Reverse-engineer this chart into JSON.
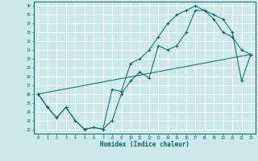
{
  "xlabel": "Humidex (Indice chaleur)",
  "ylabel": "",
  "bg_color": "#cce8e8",
  "grid_color": "#ffffff",
  "line_color": "#006666",
  "xlim": [
    -0.5,
    23.5
  ],
  "ylim": [
    21.5,
    36.5
  ],
  "xticks": [
    0,
    1,
    2,
    3,
    4,
    5,
    6,
    7,
    8,
    9,
    10,
    11,
    12,
    13,
    14,
    15,
    16,
    17,
    18,
    19,
    20,
    21,
    22,
    23
  ],
  "yticks": [
    22,
    23,
    24,
    25,
    26,
    27,
    28,
    29,
    30,
    31,
    32,
    33,
    34,
    35,
    36
  ],
  "line1_x": [
    0,
    1,
    2,
    3,
    4,
    5,
    6,
    7,
    8,
    9,
    10,
    11,
    12,
    13,
    14,
    15,
    16,
    17,
    18,
    19,
    20,
    21,
    22,
    23
  ],
  "line1_y": [
    26.0,
    24.5,
    23.3,
    24.5,
    23.0,
    22.0,
    22.2,
    22.0,
    26.5,
    26.3,
    29.5,
    30.0,
    31.0,
    32.5,
    34.0,
    35.0,
    35.5,
    36.0,
    35.5,
    34.5,
    33.0,
    32.5,
    31.0,
    30.5
  ],
  "line2_x": [
    0,
    1,
    2,
    3,
    4,
    5,
    6,
    7,
    8,
    9,
    10,
    11,
    12,
    13,
    14,
    15,
    16,
    17,
    18,
    19,
    20,
    21,
    22,
    23
  ],
  "line2_y": [
    26.0,
    24.5,
    23.3,
    24.5,
    23.0,
    22.0,
    22.2,
    22.0,
    23.0,
    26.0,
    27.5,
    28.5,
    27.8,
    31.5,
    31.0,
    31.5,
    33.0,
    35.5,
    35.5,
    35.0,
    34.5,
    33.0,
    27.5,
    30.5
  ],
  "line3_x": [
    0,
    23
  ],
  "line3_y": [
    26.0,
    30.5
  ]
}
